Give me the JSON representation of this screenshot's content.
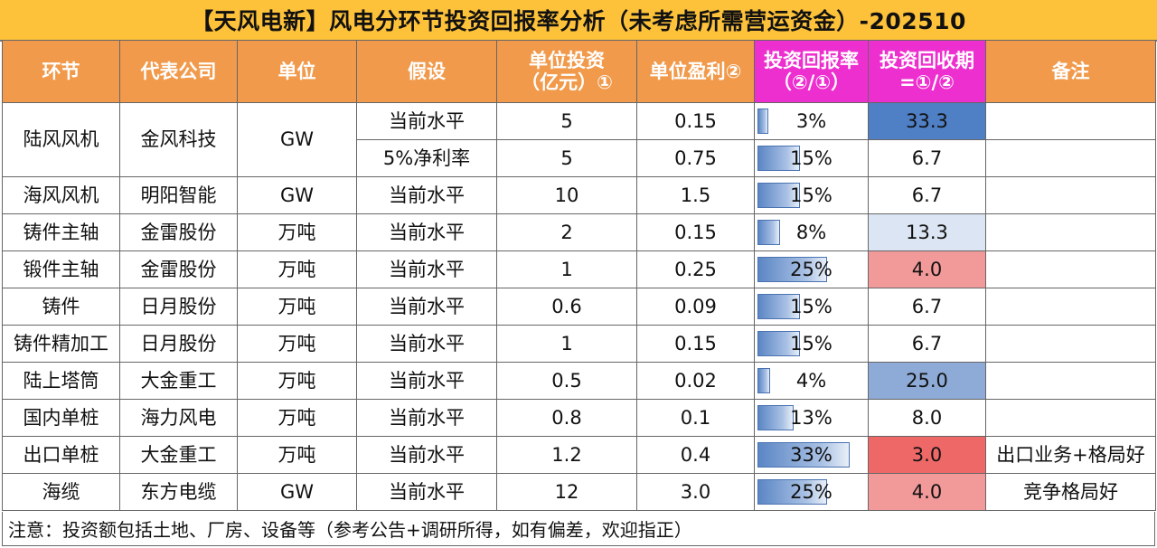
{
  "title": "【天风电新】风电分环节投资回报率分析（未考虑所需营运资金）-202510",
  "headers": {
    "segment": "环节",
    "company": "代表公司",
    "unit": "单位",
    "assumption": "假设",
    "unit_investment_line1": "单位投资",
    "unit_investment_line2": "（亿元）①",
    "unit_profit": "单位盈利②",
    "roi_line1": "投资回报率",
    "roi_line2": "（②/①）",
    "payback_line1": "投资回收期",
    "payback_line2": "=①/②",
    "remarks": "备注"
  },
  "rows": [
    {
      "segment": "陆风风机",
      "company": "金风科技",
      "unit": "GW",
      "assumption": "当前水平",
      "investment": "5",
      "profit": "0.15",
      "roi": "3%",
      "roi_value": 0.03,
      "payback": "33.3",
      "payback_color": "#4f7fc4",
      "remark": ""
    },
    {
      "segment": "",
      "company": "",
      "unit": "",
      "assumption": "5%净利率",
      "investment": "5",
      "profit": "0.75",
      "roi": "15%",
      "roi_value": 0.15,
      "payback": "6.7",
      "payback_color": "#ffffff",
      "remark": ""
    },
    {
      "segment": "海风风机",
      "company": "明阳智能",
      "unit": "GW",
      "assumption": "当前水平",
      "investment": "10",
      "profit": "1.5",
      "roi": "15%",
      "roi_value": 0.15,
      "payback": "6.7",
      "payback_color": "#ffffff",
      "remark": ""
    },
    {
      "segment": "铸件主轴",
      "company": "金雷股份",
      "unit": "万吨",
      "assumption": "当前水平",
      "investment": "2",
      "profit": "0.15",
      "roi": "8%",
      "roi_value": 0.075,
      "payback": "13.3",
      "payback_color": "#dbe5f3",
      "remark": ""
    },
    {
      "segment": "锻件主轴",
      "company": "金雷股份",
      "unit": "万吨",
      "assumption": "当前水平",
      "investment": "1",
      "profit": "0.25",
      "roi": "25%",
      "roi_value": 0.25,
      "payback": "4.0",
      "payback_color": "#f29a9a",
      "remark": ""
    },
    {
      "segment": "铸件",
      "company": "日月股份",
      "unit": "万吨",
      "assumption": "当前水平",
      "investment": "0.6",
      "profit": "0.09",
      "roi": "15%",
      "roi_value": 0.15,
      "payback": "6.7",
      "payback_color": "#ffffff",
      "remark": ""
    },
    {
      "segment": "铸件精加工",
      "company": "日月股份",
      "unit": "万吨",
      "assumption": "当前水平",
      "investment": "1",
      "profit": "0.15",
      "roi": "15%",
      "roi_value": 0.15,
      "payback": "6.7",
      "payback_color": "#ffffff",
      "remark": ""
    },
    {
      "segment": "陆上塔筒",
      "company": "大金重工",
      "unit": "万吨",
      "assumption": "当前水平",
      "investment": "0.5",
      "profit": "0.02",
      "roi": "4%",
      "roi_value": 0.04,
      "payback": "25.0",
      "payback_color": "#8eabd8",
      "remark": ""
    },
    {
      "segment": "国内单桩",
      "company": "海力风电",
      "unit": "万吨",
      "assumption": "当前水平",
      "investment": "0.8",
      "profit": "0.1",
      "roi": "13%",
      "roi_value": 0.125,
      "payback": "8.0",
      "payback_color": "#ffffff",
      "remark": ""
    },
    {
      "segment": "出口单桩",
      "company": "大金重工",
      "unit": "万吨",
      "assumption": "当前水平",
      "investment": "1.2",
      "profit": "0.4",
      "roi": "33%",
      "roi_value": 0.333,
      "payback": "3.0",
      "payback_color": "#ee6868",
      "remark": "出口业务+格局好"
    },
    {
      "segment": "海缆",
      "company": "东方电缆",
      "unit": "GW",
      "assumption": "当前水平",
      "investment": "12",
      "profit": "3.0",
      "roi": "25%",
      "roi_value": 0.25,
      "payback": "4.0",
      "payback_color": "#f29a9a",
      "remark": "竞争格局好"
    }
  ],
  "footer": "注意：投资额包括土地、厂房、设备等（参考公告+调研所得，如有偏差，欢迎指正）"
}
